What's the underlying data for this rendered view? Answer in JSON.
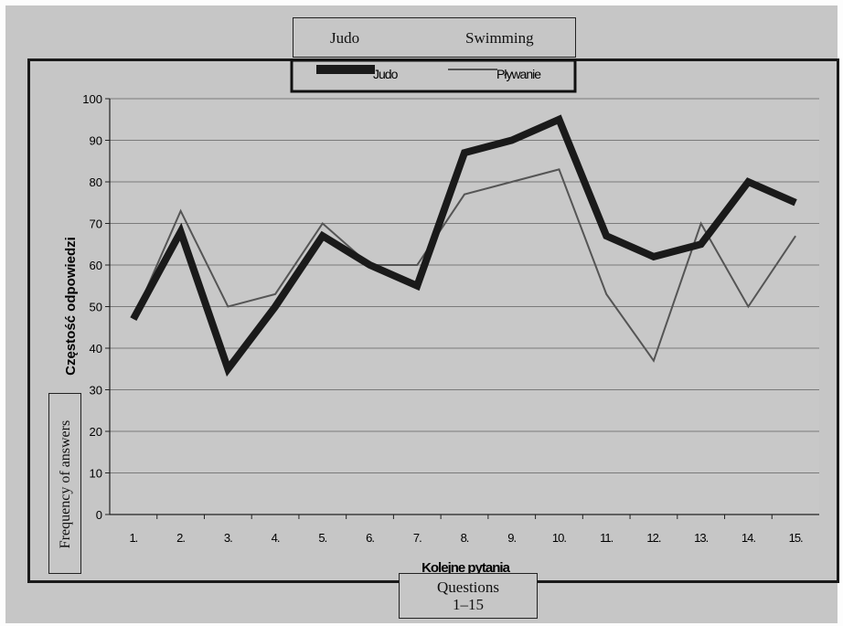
{
  "overlay": {
    "legend_translation": {
      "judo": "Judo",
      "swimming": "Swimming"
    },
    "y_translation": "Frequency of answers",
    "x_translation_line1": "Questions",
    "x_translation_line2": "1–15"
  },
  "colors": {
    "judo": "#1a1a1a",
    "plywanie": "#555555",
    "grid": "#7a7a7a",
    "plot_bg": "#c8c8c8"
  },
  "chart_data": {
    "type": "line",
    "title": "",
    "xlabel": "Kolejne pytania",
    "ylabel": "Częstość odpowiedzi",
    "categories": [
      "1.",
      "2.",
      "3.",
      "4.",
      "5.",
      "6.",
      "7.",
      "8.",
      "9.",
      "10.",
      "11.",
      "12.",
      "13.",
      "14.",
      "15."
    ],
    "ylim": [
      0,
      100
    ],
    "yticks": [
      "0",
      "10",
      "20",
      "30",
      "40",
      "50",
      "60",
      "70",
      "80",
      "90",
      "100"
    ],
    "grid": true,
    "legend_position": "top-center",
    "series": [
      {
        "name": "Judo",
        "values": [
          47,
          68,
          35,
          50,
          67,
          60,
          55,
          87,
          90,
          95,
          67,
          62,
          65,
          80,
          75
        ]
      },
      {
        "name": "Pływanie",
        "values": [
          47,
          73,
          50,
          53,
          70,
          60,
          60,
          77,
          80,
          83,
          53,
          37,
          70,
          50,
          67
        ]
      }
    ]
  }
}
